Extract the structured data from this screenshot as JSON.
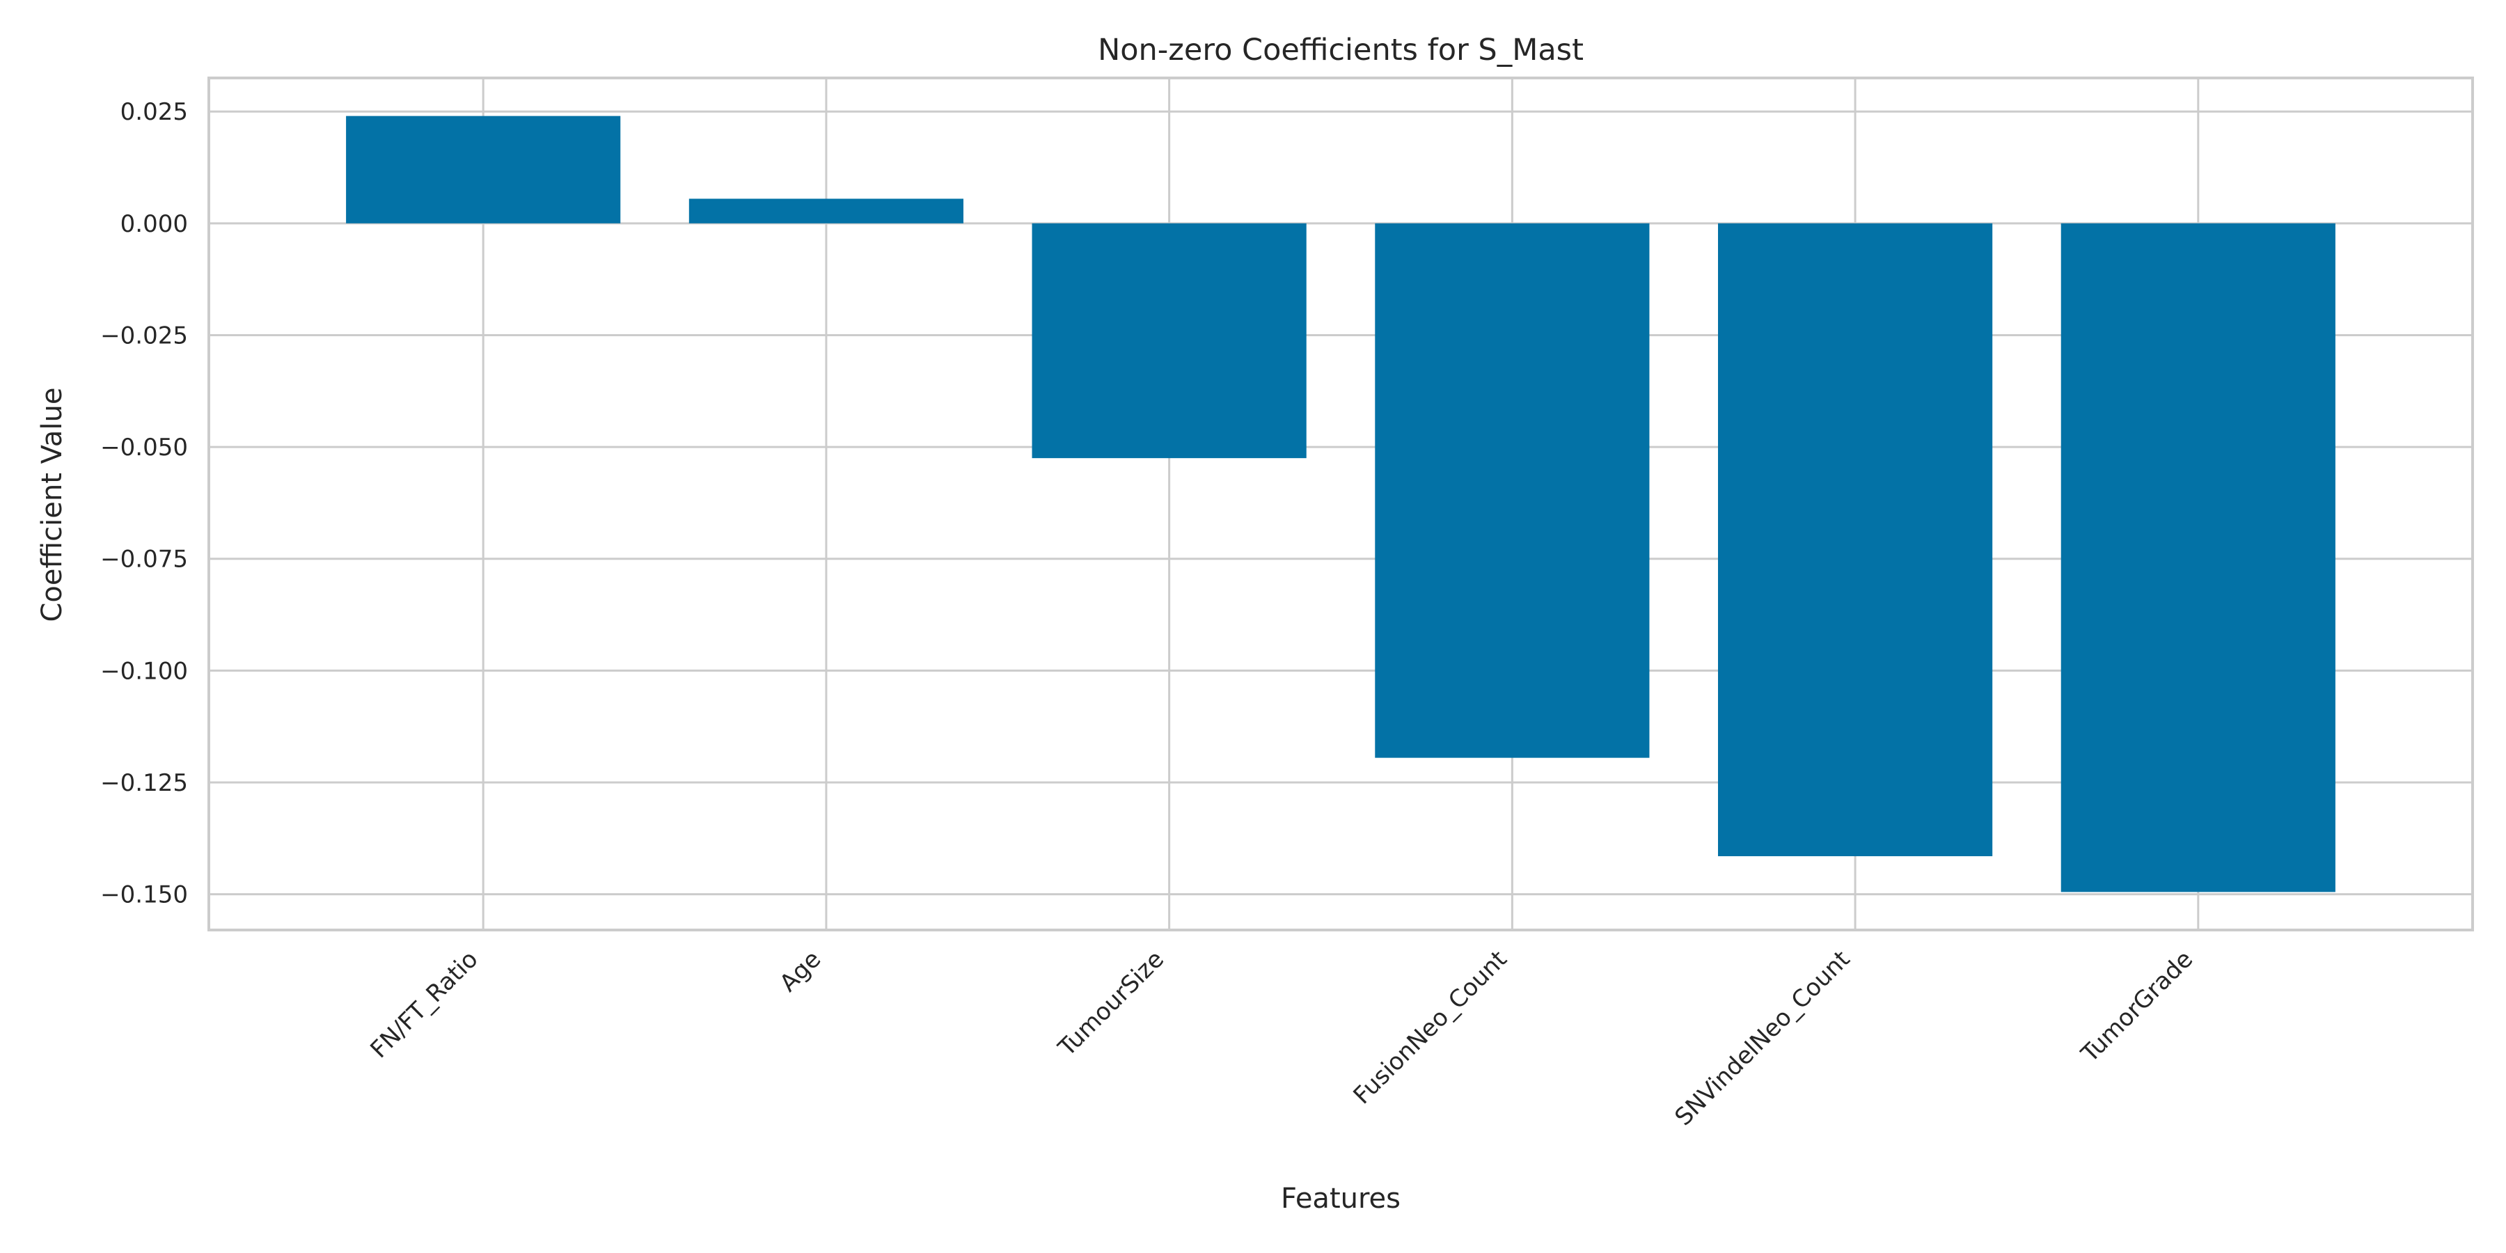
{
  "chart_data": {
    "type": "bar",
    "title": "Non-zero Coefficients for S_Mast",
    "xlabel": "Features",
    "ylabel": "Coefficient Value",
    "categories": [
      "FN/FT_Ratio",
      "Age",
      "TumourSize",
      "FusionNeo_Count",
      "SNVindelNeo_Count",
      "TumorGrade"
    ],
    "values": [
      0.024,
      0.0055,
      -0.0525,
      -0.1195,
      -0.1415,
      -0.1495
    ],
    "ylim": [
      -0.158,
      0.0325
    ],
    "yticks": [
      0.025,
      0.0,
      -0.025,
      -0.05,
      -0.075,
      -0.1,
      -0.125,
      -0.15
    ],
    "ytick_labels": [
      "0.025",
      "0.000",
      "−0.025",
      "−0.050",
      "−0.075",
      "−0.100",
      "−0.125",
      "−0.150"
    ],
    "grid": true,
    "bar_color": "#0372a6",
    "grid_color": "#cccccc",
    "axes_edge_color": "#cccccc"
  }
}
